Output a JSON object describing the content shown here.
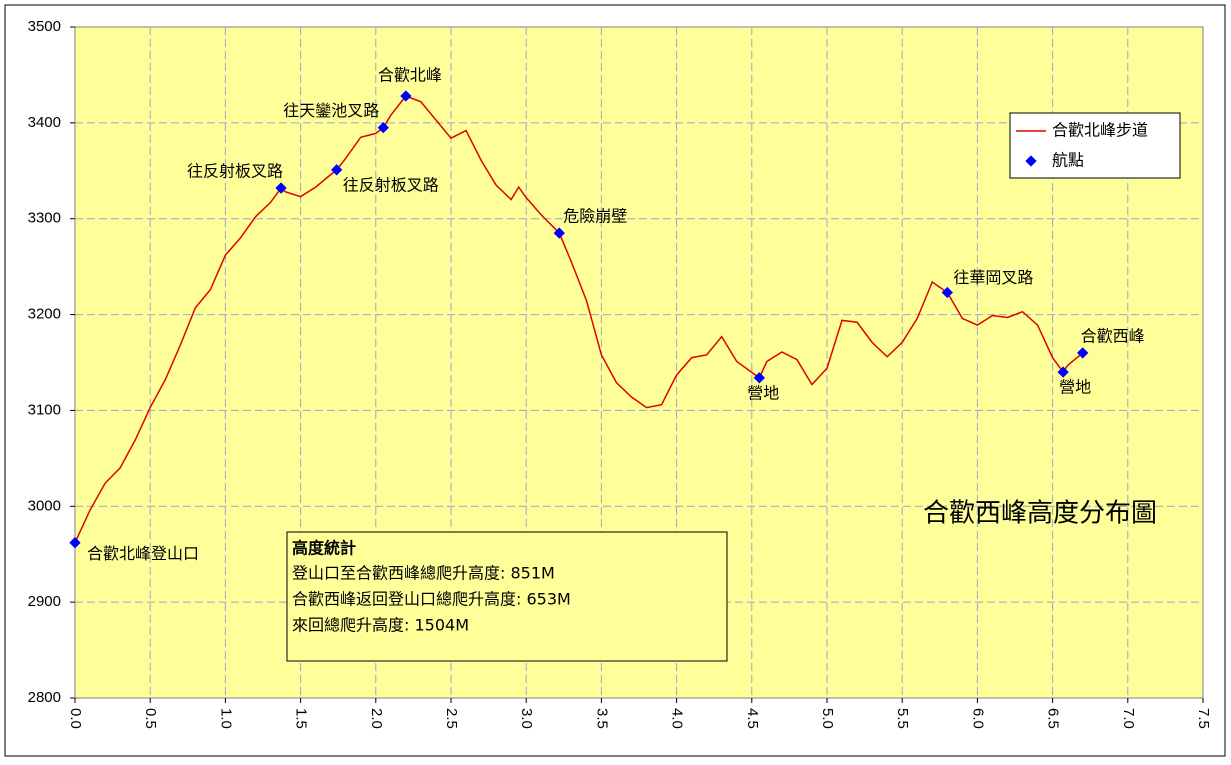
{
  "chart_data": {
    "type": "line",
    "title": "合歡西峰高度分布圖",
    "xlim": [
      0,
      7.5
    ],
    "xticks": [
      {
        "value": 0,
        "label": "0.0"
      },
      0.5,
      {
        "value": 1,
        "label": "1.0"
      },
      1.5,
      {
        "value": 2,
        "label": "2.0"
      },
      2.5,
      {
        "value": 3,
        "label": "3.0"
      },
      3.5,
      {
        "value": 4,
        "label": "4.0"
      },
      4.5,
      {
        "value": 5,
        "label": "5.0"
      },
      5.5,
      {
        "value": 6,
        "label": "6.0"
      },
      6.5,
      {
        "value": 7,
        "label": "7.0"
      },
      7.5
    ],
    "ylim": [
      2800,
      3500
    ],
    "yticks": [
      2800,
      2900,
      3000,
      3100,
      3200,
      3300,
      3400,
      3500
    ],
    "grid": true,
    "legend": "upper right",
    "series": [
      {
        "name": "合歡北峰步道",
        "color": "#e00000",
        "x": [
          0,
          0.1,
          0.2,
          0.3,
          0.4,
          0.5,
          0.6,
          0.7,
          0.8,
          0.9,
          1.0,
          1.1,
          1.2,
          1.3,
          1.37,
          1.4,
          1.5,
          1.6,
          1.7,
          1.74,
          1.8,
          1.9,
          2.0,
          2.05,
          2.1,
          2.2,
          2.3,
          2.4,
          2.5,
          2.6,
          2.7,
          2.8,
          2.9,
          2.95,
          3.0,
          3.1,
          3.22,
          3.3,
          3.4,
          3.5,
          3.6,
          3.7,
          3.8,
          3.9,
          4.0,
          4.1,
          4.2,
          4.3,
          4.4,
          4.55,
          4.6,
          4.7,
          4.8,
          4.9,
          5.0,
          5.1,
          5.2,
          5.3,
          5.4,
          5.5,
          5.6,
          5.7,
          5.8,
          5.9,
          6.0,
          6.1,
          6.2,
          6.3,
          6.4,
          6.5,
          6.57,
          6.6,
          6.7
        ],
        "values": [
          2962,
          2996,
          3024,
          3040,
          3069,
          3103,
          3132,
          3168,
          3207,
          3226,
          3262,
          3280,
          3302,
          3317,
          3332,
          3328,
          3323,
          3333,
          3346,
          3351,
          3363,
          3385,
          3389,
          3395,
          3408,
          3428,
          3422,
          3403,
          3384,
          3392,
          3361,
          3335,
          3320,
          3333,
          3322,
          3304,
          3285,
          3255,
          3215,
          3158,
          3129,
          3114,
          3103,
          3106,
          3137,
          3155,
          3158,
          3177,
          3151,
          3134,
          3151,
          3161,
          3153,
          3127,
          3144,
          3194,
          3192,
          3171,
          3156,
          3171,
          3196,
          3234,
          3223,
          3196,
          3189,
          3199,
          3197,
          3203,
          3189,
          3155,
          3140,
          3147,
          3160
        ]
      },
      {
        "name": "航點",
        "color": "#0000ff",
        "x": [
          0,
          1.37,
          1.74,
          2.05,
          2.2,
          3.22,
          4.55,
          5.8,
          6.57,
          6.7
        ],
        "values": [
          2962,
          3332,
          3351,
          3395,
          3428,
          3285,
          3134,
          3223,
          3140,
          3160
        ],
        "labels": [
          "合歡北峰登山口",
          "往反射板叉路",
          "往反射板叉路",
          "往天鑾池叉路",
          "合歡北峰",
          "危險崩壁",
          "營地",
          "往華岡叉路",
          "營地",
          "合歡西峰"
        ]
      }
    ],
    "stats_box": {
      "title": "高度統計",
      "lines": [
        "登山口至合歡西峰總爬升高度: 851M",
        "合歡西峰返回登山口總爬升高度: 653M",
        "來回總爬升高度: 1504M"
      ]
    }
  }
}
